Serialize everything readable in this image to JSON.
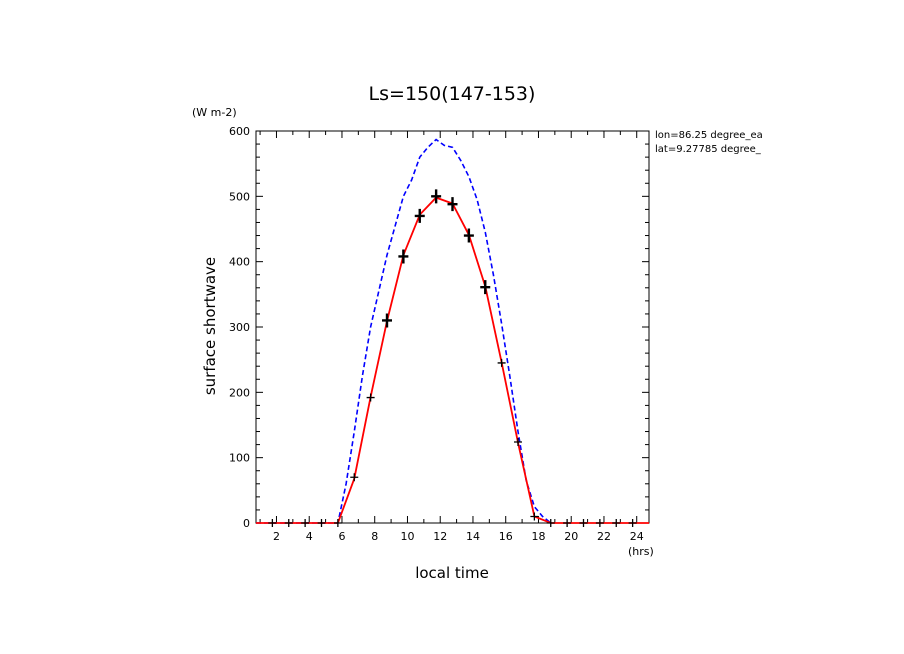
{
  "chart_data": {
    "type": "line",
    "title": "Ls=150(147-153)",
    "xlabel": "local time",
    "ylabel": "surface shortwave",
    "x_unit": "(hrs)",
    "y_unit": "(W m-2)",
    "xlim": [
      0.75,
      24.75
    ],
    "ylim": [
      0,
      600
    ],
    "x_ticks": [
      2,
      4,
      6,
      8,
      10,
      12,
      14,
      16,
      18,
      20,
      22,
      24
    ],
    "y_ticks": [
      0,
      100,
      200,
      300,
      400,
      500,
      600
    ],
    "info_lines": [
      "lon=86.25 degree_ea",
      "lat=9.27785 degree_"
    ],
    "grid": false,
    "legend": "none",
    "series": [
      {
        "style": "dashed",
        "color": "#0000ff",
        "x": [
          0.75,
          1.75,
          2.75,
          3.75,
          4.75,
          5.75,
          6.25,
          6.75,
          7.25,
          7.75,
          8.25,
          8.75,
          9.25,
          9.75,
          10.25,
          10.75,
          11.25,
          11.75,
          12.25,
          12.75,
          13.25,
          13.75,
          14.25,
          14.75,
          15.25,
          15.75,
          16.25,
          16.75,
          17.25,
          17.75,
          18.25,
          18.75
        ],
        "y": [
          0,
          0,
          0,
          0,
          0,
          0,
          60,
          140,
          225,
          300,
          355,
          410,
          455,
          500,
          525,
          560,
          575,
          587,
          578,
          575,
          555,
          530,
          495,
          445,
          380,
          305,
          225,
          140,
          65,
          25,
          10,
          0
        ]
      },
      {
        "style": "solid",
        "color": "#ff0000",
        "x": [
          0.75,
          1.75,
          2.75,
          3.75,
          4.75,
          5.75,
          6.75,
          7.75,
          8.75,
          9.75,
          10.75,
          11.75,
          12.75,
          13.75,
          14.75,
          15.75,
          16.75,
          17.75,
          18.75,
          19.75,
          20.75,
          21.75,
          22.75,
          23.75,
          24.75
        ],
        "y": [
          0,
          0,
          0,
          0,
          0,
          0,
          68,
          193,
          309,
          410,
          472,
          498,
          489,
          441,
          362,
          246,
          123,
          10,
          0,
          0,
          0,
          0,
          0,
          0,
          0
        ]
      },
      {
        "style": "markers",
        "color": "#000000",
        "x": [
          1.75,
          2.75,
          3.75,
          4.75,
          5.75,
          6.75,
          7.75,
          8.75,
          9.75,
          10.75,
          11.75,
          12.75,
          13.75,
          14.75,
          15.75,
          16.75,
          17.75,
          18.75,
          19.75,
          20.75,
          21.75,
          22.75,
          23.75
        ],
        "y": [
          0,
          0,
          0,
          0,
          0,
          70,
          192,
          310,
          408,
          470,
          500,
          488,
          440,
          361,
          245,
          124,
          10,
          0,
          0,
          0,
          0,
          0,
          0
        ]
      }
    ]
  }
}
